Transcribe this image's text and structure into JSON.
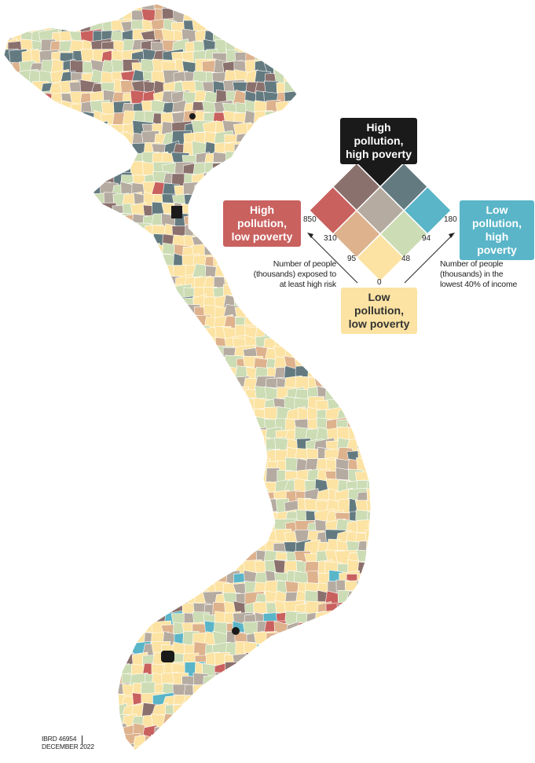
{
  "legend": {
    "corners": {
      "high_high": "High pollution, high poverty",
      "high_low": "High pollution, low poverty",
      "low_high": "Low pollution, high poverty",
      "low_low": "Low pollution, low poverty"
    },
    "axis_left_note": "Number of people (thousands) exposed to at least high risk",
    "axis_right_note": "Number of people (thousands) in the lowest 40% of income",
    "pollution_ticks": [
      "0",
      "95",
      "310",
      "850"
    ],
    "poverty_ticks": [
      "0",
      "48",
      "94",
      "180"
    ],
    "grid_colors": {
      "low_low": "#fce3a3",
      "mid_low": "#ddb28d",
      "high_low": "#c9615f",
      "low_mid": "#ccdcb4",
      "mid_mid": "#b5aba0",
      "high_mid": "#8b716d",
      "low_high": "#5ab5c8",
      "mid_high": "#637a80",
      "high_high": "#1a1a1a"
    }
  },
  "credit": {
    "line1": "IBRD 46954",
    "line2": "DECEMBER 2022"
  }
}
